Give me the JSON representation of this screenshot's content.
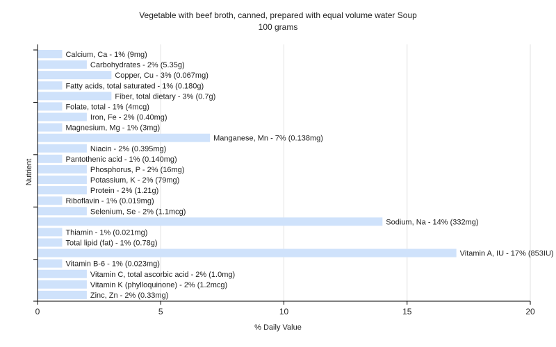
{
  "chart_data": {
    "type": "bar",
    "orientation": "horizontal",
    "title": "Vegetable with beef broth, canned, prepared with equal volume water Soup",
    "subtitle": "100 grams",
    "xlabel": "% Daily Value",
    "ylabel": "Nutrient",
    "xlim": [
      0,
      20
    ],
    "xticks": [
      0,
      5,
      10,
      15,
      20
    ],
    "grid": true,
    "categories": [
      "Calcium, Ca",
      "Carbohydrates",
      "Copper, Cu",
      "Fatty acids, total saturated",
      "Fiber, total dietary",
      "Folate, total",
      "Iron, Fe",
      "Magnesium, Mg",
      "Manganese, Mn",
      "Niacin",
      "Pantothenic acid",
      "Phosphorus, P",
      "Potassium, K",
      "Protein",
      "Riboflavin",
      "Selenium, Se",
      "Sodium, Na",
      "Thiamin",
      "Total lipid (fat)",
      "Vitamin A, IU",
      "Vitamin B-6",
      "Vitamin C, total ascorbic acid",
      "Vitamin K (phylloquinone)",
      "Zinc, Zn"
    ],
    "values": [
      1,
      2,
      3,
      1,
      3,
      1,
      2,
      1,
      7,
      2,
      1,
      2,
      2,
      2,
      1,
      2,
      14,
      1,
      1,
      17,
      1,
      2,
      2,
      2
    ],
    "labels": [
      "Calcium, Ca - 1% (9mg)",
      "Carbohydrates - 2% (5.35g)",
      "Copper, Cu - 3% (0.067mg)",
      "Fatty acids, total saturated - 1% (0.180g)",
      "Fiber, total dietary - 3% (0.7g)",
      "Folate, total - 1% (4mcg)",
      "Iron, Fe - 2% (0.40mg)",
      "Magnesium, Mg - 1% (3mg)",
      "Manganese, Mn - 7% (0.138mg)",
      "Niacin - 2% (0.395mg)",
      "Pantothenic acid - 1% (0.140mg)",
      "Phosphorus, P - 2% (16mg)",
      "Potassium, K - 2% (79mg)",
      "Protein - 2% (1.21g)",
      "Riboflavin - 1% (0.019mg)",
      "Selenium, Se - 2% (1.1mcg)",
      "Sodium, Na - 14% (332mg)",
      "Thiamin - 1% (0.021mg)",
      "Total lipid (fat) - 1% (0.78g)",
      "Vitamin A, IU - 17% (853IU)",
      "Vitamin B-6 - 1% (0.023mg)",
      "Vitamin C, total ascorbic acid - 2% (1.0mg)",
      "Vitamin K (phylloquinone) - 2% (1.2mcg)",
      "Zinc, Zn - 2% (0.33mg)"
    ],
    "colors": {
      "bar": "#cfe2fb",
      "grid": "#e2e2e2",
      "axis": "#000000",
      "text": "#222222"
    }
  }
}
